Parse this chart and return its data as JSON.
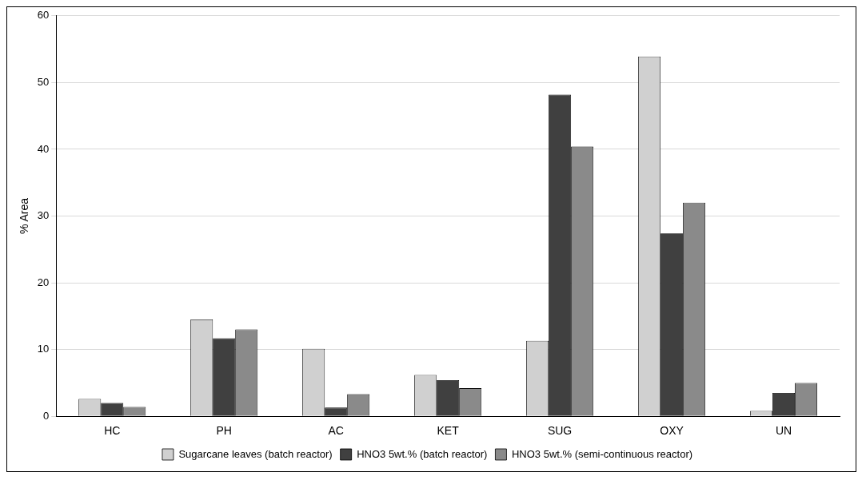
{
  "chart_data": {
    "type": "bar",
    "ylabel": "% Area",
    "categories": [
      "HC",
      "PH",
      "AC",
      "KET",
      "SUG",
      "OXY",
      "UN"
    ],
    "series": [
      {
        "name": "Sugarcane leaves (batch reactor)",
        "color": "#d0d0d0",
        "values": [
          2.6,
          14.5,
          10.1,
          6.2,
          11.3,
          53.9,
          0.8
        ]
      },
      {
        "name": "HNO3 5wt.% (batch reactor)",
        "color": "#404040",
        "values": [
          2.0,
          11.7,
          1.3,
          5.4,
          48.2,
          27.4,
          3.5
        ]
      },
      {
        "name": "HNO3 5wt.% (semi-continuous reactor)",
        "color": "#8a8a8a",
        "values": [
          1.4,
          13.0,
          3.3,
          4.2,
          40.4,
          32.0,
          5.0
        ]
      }
    ],
    "ylim": [
      0,
      60
    ],
    "yticks": [
      0,
      10,
      20,
      30,
      40,
      50,
      60
    ],
    "grid": "y",
    "legend": "bottom"
  }
}
